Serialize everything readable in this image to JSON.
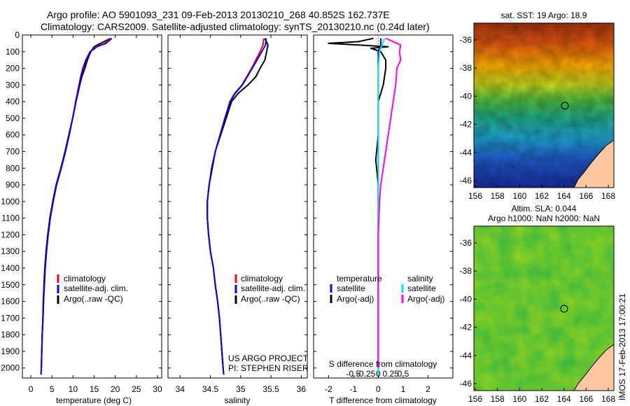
{
  "header": {
    "line1": "Argo profile: AO 5901093_231 09-Feb-2013 20130210_268 40.852S 162.737E",
    "line2": "Climatology: CARS2009. Satellite-adjusted climatology: synTS_20130210.nc (0.24d later)"
  },
  "depth_axis": {
    "ticks": [
      0,
      100,
      200,
      300,
      400,
      500,
      600,
      700,
      800,
      900,
      1000,
      1100,
      1200,
      1300,
      1400,
      1500,
      1600,
      1700,
      1800,
      1900,
      2000
    ],
    "range": [
      0,
      2060
    ]
  },
  "colors": {
    "climatology": "#ff0000",
    "satellite_adj": "#0000ff",
    "argo": "#000000",
    "sal_satellite": "#00e5ee",
    "sal_argo": "#ff00ff"
  },
  "panels": {
    "temperature": {
      "xlabel": "temperature (deg C)",
      "xticks": [
        0,
        5,
        10,
        15,
        20,
        25,
        30
      ],
      "xlim": [
        -2,
        31
      ],
      "legend": [
        "climatology",
        "satellite-adj. clim.",
        "Argo(..raw -QC)"
      ]
    },
    "salinity": {
      "xlabel": "salinity",
      "xticks": [
        "34",
        "34.5",
        "35",
        "35.5",
        "36"
      ],
      "xlim": [
        33.8,
        36.1
      ],
      "legend": [
        "climatology",
        "satellite-adj. clim.",
        "Argo(..raw -QC)"
      ],
      "note1": "US ARGO PROJECT",
      "note2": "PI: STEPHEN RISER"
    },
    "difference": {
      "xlabel": "T difference from climatology",
      "top_label": "S difference from climatology",
      "x_ticks_top": [
        "-0.5",
        "-0.25",
        "0",
        "0.25",
        "0.5"
      ],
      "x_ticks_bottom": [
        "-2",
        "-1",
        "0",
        "1",
        "2"
      ],
      "legend_temp_head": "temperature",
      "legend_sal_head": "salinity",
      "legend_temp": [
        "satellite",
        "Argo(-adj)"
      ],
      "legend_sal": [
        "satellite",
        "Argo(-adj)"
      ]
    }
  },
  "maps": {
    "sst": {
      "title": "sat. SST: 19 Argo: 18.9"
    },
    "sla": {
      "title1": "Altim. SLA: 0.044",
      "title2": "Argo h1000: NaN h2000: NaN"
    },
    "lat_ticks": [
      "-36",
      "-38",
      "-40",
      "-42",
      "-44",
      "-46"
    ],
    "lon_ticks": [
      "156",
      "158",
      "160",
      "162",
      "164",
      "166",
      "168"
    ]
  },
  "footer_stamp": "IMOS 17-Feb-2013 17:00:21",
  "chart_data": [
    {
      "type": "line",
      "name": "temperature",
      "xlabel": "temperature (deg C)",
      "ylabel": "",
      "xlim": [
        -2,
        31
      ],
      "ylim": [
        2060,
        0
      ],
      "series": [
        {
          "name": "climatology",
          "points": [
            [
              18.9,
              20
            ],
            [
              17.5,
              50
            ],
            [
              15.5,
              70
            ],
            [
              14.0,
              100
            ],
            [
              13.0,
              150
            ],
            [
              12.3,
              200
            ],
            [
              11.8,
              250
            ],
            [
              11.4,
              300
            ],
            [
              10.6,
              400
            ],
            [
              9.9,
              500
            ],
            [
              9.1,
              600
            ],
            [
              8.2,
              700
            ],
            [
              7.2,
              800
            ],
            [
              6.1,
              900
            ],
            [
              5.3,
              1000
            ],
            [
              4.6,
              1100
            ],
            [
              4.1,
              1200
            ],
            [
              3.7,
              1300
            ],
            [
              3.4,
              1400
            ],
            [
              3.2,
              1500
            ],
            [
              3.0,
              1600
            ],
            [
              2.9,
              1700
            ],
            [
              2.7,
              1800
            ],
            [
              2.6,
              1900
            ],
            [
              2.5,
              2000
            ],
            [
              2.4,
              2040
            ]
          ]
        },
        {
          "name": "satellite-adj. clim.",
          "points": [
            [
              19.2,
              20
            ],
            [
              17.8,
              50
            ],
            [
              15.7,
              70
            ],
            [
              14.1,
              100
            ],
            [
              13.1,
              150
            ],
            [
              12.4,
              200
            ],
            [
              11.9,
              250
            ],
            [
              11.5,
              300
            ],
            [
              10.7,
              400
            ],
            [
              9.9,
              500
            ],
            [
              9.1,
              600
            ],
            [
              8.2,
              700
            ],
            [
              7.2,
              800
            ],
            [
              6.1,
              900
            ],
            [
              5.3,
              1000
            ],
            [
              4.6,
              1100
            ],
            [
              4.1,
              1200
            ],
            [
              3.7,
              1300
            ],
            [
              3.4,
              1400
            ],
            [
              3.2,
              1500
            ],
            [
              3.0,
              1600
            ],
            [
              2.9,
              1700
            ],
            [
              2.7,
              1800
            ],
            [
              2.6,
              1900
            ],
            [
              2.5,
              2000
            ],
            [
              2.4,
              2040
            ]
          ]
        },
        {
          "name": "Argo(..raw -QC)",
          "points": [
            [
              18.9,
              20
            ],
            [
              16.5,
              50
            ],
            [
              15.0,
              70
            ],
            [
              14.2,
              100
            ],
            [
              13.4,
              150
            ],
            [
              12.8,
              200
            ],
            [
              12.1,
              250
            ],
            [
              11.6,
              300
            ],
            [
              10.7,
              400
            ],
            [
              9.9,
              500
            ],
            [
              9.0,
              600
            ],
            [
              8.1,
              700
            ],
            [
              7.1,
              800
            ],
            [
              6.0,
              900
            ],
            [
              5.2,
              1000
            ],
            [
              4.5,
              1100
            ],
            [
              4.0,
              1200
            ],
            [
              3.6,
              1300
            ],
            [
              3.3,
              1400
            ],
            [
              3.1,
              1500
            ],
            [
              2.95,
              1600
            ],
            [
              2.85,
              1700
            ],
            [
              2.7,
              1800
            ],
            [
              2.6,
              1900
            ],
            [
              2.5,
              2000
            ]
          ]
        }
      ]
    },
    {
      "type": "line",
      "name": "salinity",
      "xlabel": "salinity",
      "ylabel": "",
      "xlim": [
        33.8,
        36.1
      ],
      "ylim": [
        2060,
        0
      ],
      "series": [
        {
          "name": "climatology",
          "points": [
            [
              35.38,
              20
            ],
            [
              35.37,
              60
            ],
            [
              35.32,
              100
            ],
            [
              35.25,
              150
            ],
            [
              35.18,
              200
            ],
            [
              35.1,
              250
            ],
            [
              35.02,
              300
            ],
            [
              34.9,
              350
            ],
            [
              34.82,
              400
            ],
            [
              34.74,
              500
            ],
            [
              34.66,
              600
            ],
            [
              34.58,
              700
            ],
            [
              34.53,
              800
            ],
            [
              34.48,
              900
            ],
            [
              34.45,
              1000
            ],
            [
              34.45,
              1100
            ],
            [
              34.47,
              1200
            ],
            [
              34.5,
              1300
            ],
            [
              34.55,
              1400
            ],
            [
              34.58,
              1500
            ],
            [
              34.62,
              1600
            ],
            [
              34.65,
              1700
            ],
            [
              34.67,
              1800
            ],
            [
              34.69,
              1900
            ],
            [
              34.71,
              2000
            ],
            [
              34.72,
              2040
            ]
          ]
        },
        {
          "name": "satellite-adj. clim.",
          "points": [
            [
              35.42,
              20
            ],
            [
              35.41,
              60
            ],
            [
              35.35,
              100
            ],
            [
              35.27,
              150
            ],
            [
              35.19,
              200
            ],
            [
              35.11,
              250
            ],
            [
              35.03,
              300
            ],
            [
              34.91,
              350
            ],
            [
              34.83,
              400
            ],
            [
              34.74,
              500
            ],
            [
              34.66,
              600
            ],
            [
              34.58,
              700
            ],
            [
              34.53,
              800
            ],
            [
              34.48,
              900
            ],
            [
              34.45,
              1000
            ],
            [
              34.45,
              1100
            ],
            [
              34.47,
              1200
            ],
            [
              34.5,
              1300
            ],
            [
              34.55,
              1400
            ],
            [
              34.58,
              1500
            ],
            [
              34.62,
              1600
            ],
            [
              34.65,
              1700
            ],
            [
              34.67,
              1800
            ],
            [
              34.69,
              1900
            ],
            [
              34.71,
              2000
            ],
            [
              34.72,
              2040
            ]
          ]
        },
        {
          "name": "Argo(..raw -QC)",
          "points": [
            [
              35.4,
              20
            ],
            [
              35.45,
              60
            ],
            [
              35.43,
              100
            ],
            [
              35.4,
              150
            ],
            [
              35.32,
              200
            ],
            [
              35.25,
              250
            ],
            [
              35.12,
              300
            ],
            [
              34.96,
              350
            ],
            [
              34.85,
              400
            ],
            [
              34.76,
              500
            ],
            [
              34.67,
              600
            ],
            [
              34.58,
              700
            ],
            [
              34.52,
              800
            ],
            [
              34.48,
              900
            ],
            [
              34.45,
              1000
            ],
            [
              34.45,
              1100
            ],
            [
              34.47,
              1200
            ],
            [
              34.5,
              1300
            ],
            [
              34.55,
              1400
            ],
            [
              34.58,
              1500
            ],
            [
              34.62,
              1600
            ],
            [
              34.65,
              1700
            ],
            [
              34.67,
              1800
            ],
            [
              34.69,
              1900
            ],
            [
              34.71,
              2000
            ]
          ]
        }
      ]
    },
    {
      "type": "line",
      "name": "difference",
      "xlabel": "T difference from climatology",
      "ylabel": "",
      "xlim": [
        -2.6,
        3.0
      ],
      "ylim": [
        2060,
        0
      ],
      "series": [
        {
          "name": "temperature satellite",
          "points": [
            [
              0.1,
              20
            ],
            [
              0.1,
              60
            ],
            [
              0.0,
              100
            ],
            [
              0.0,
              200
            ],
            [
              0.0,
              400
            ],
            [
              0.0,
              800
            ],
            [
              0.0,
              1200
            ],
            [
              0.0,
              2040
            ]
          ]
        },
        {
          "name": "temperature Argo(-adj)",
          "points": [
            [
              -0.2,
              20
            ],
            [
              -0.8,
              40
            ],
            [
              -2.0,
              50
            ],
            [
              -0.8,
              60
            ],
            [
              0.4,
              70
            ],
            [
              -0.3,
              80
            ],
            [
              0.1,
              100
            ],
            [
              0.3,
              150
            ],
            [
              0.3,
              200
            ],
            [
              0.2,
              300
            ],
            [
              0.0,
              400
            ],
            [
              0.0,
              600
            ],
            [
              -0.1,
              750
            ],
            [
              0.0,
              900
            ],
            [
              0.0,
              1200
            ],
            [
              0.0,
              2000
            ]
          ]
        },
        {
          "name": "salinity satellite",
          "points": [
            [
              0.25,
              20
            ],
            [
              0.15,
              60
            ],
            [
              0.05,
              100
            ],
            [
              0.0,
              200
            ],
            [
              0.0,
              400
            ],
            [
              0.0,
              800
            ],
            [
              0.0,
              2040
            ]
          ]
        },
        {
          "name": "salinity Argo(-adj)",
          "points": [
            [
              0.3,
              20
            ],
            [
              0.9,
              60
            ],
            [
              0.85,
              100
            ],
            [
              0.9,
              150
            ],
            [
              0.75,
              200
            ],
            [
              0.7,
              300
            ],
            [
              0.6,
              400
            ],
            [
              0.5,
              500
            ],
            [
              0.4,
              600
            ],
            [
              0.3,
              700
            ],
            [
              0.2,
              800
            ],
            [
              0.1,
              900
            ],
            [
              0.05,
              1000
            ],
            [
              0.0,
              1200
            ],
            [
              0.0,
              2000
            ]
          ]
        }
      ]
    }
  ]
}
